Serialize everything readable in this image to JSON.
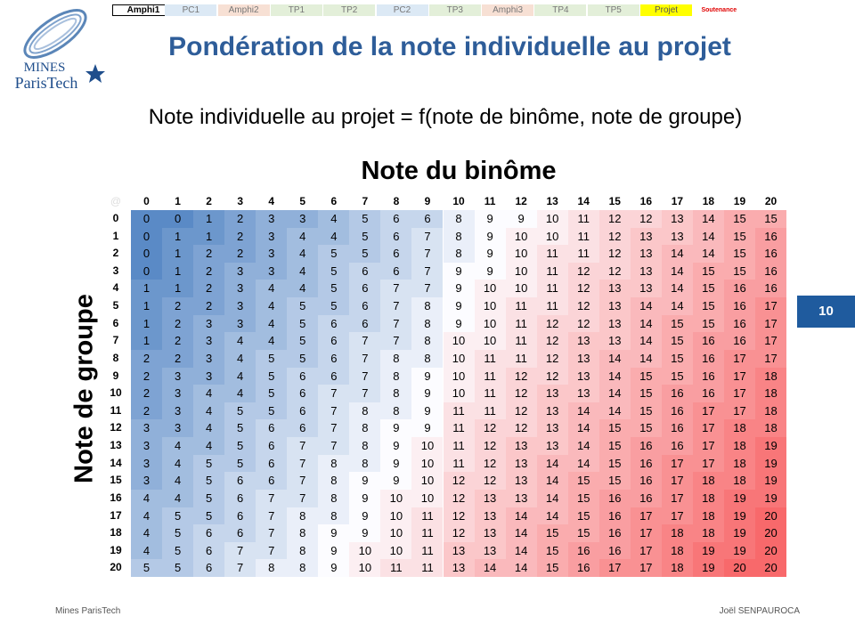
{
  "nav": [
    "Amphi1",
    "PC1",
    "Amphi2",
    "TP1",
    "TP2",
    "PC2",
    "TP3",
    "Amphi3",
    "TP4",
    "TP5",
    "Projet",
    "Soutenance"
  ],
  "logo": {
    "line1": "MINES",
    "line2": "ParisTech"
  },
  "header": {
    "title": "Pondération de la note individuelle au projet"
  },
  "formula": "Note individuelle au projet = f(note de binôme, note de groupe)",
  "table": {
    "title": "Note du binôme",
    "row_axis_label": "Note de groupe",
    "corner": "@",
    "columns": [
      0,
      1,
      2,
      3,
      4,
      5,
      6,
      7,
      8,
      9,
      10,
      11,
      12,
      13,
      14,
      15,
      16,
      17,
      18,
      19,
      20
    ],
    "row_headers": [
      0,
      1,
      2,
      3,
      4,
      5,
      6,
      7,
      8,
      9,
      10,
      11,
      12,
      13,
      14,
      15,
      16,
      17,
      18,
      19,
      20
    ],
    "rows": [
      [
        0,
        0,
        1,
        2,
        3,
        3,
        4,
        5,
        6,
        6,
        8,
        9,
        9,
        10,
        11,
        12,
        12,
        13,
        14,
        15,
        15
      ],
      [
        0,
        1,
        1,
        2,
        3,
        4,
        4,
        5,
        6,
        7,
        8,
        9,
        10,
        10,
        11,
        12,
        13,
        13,
        14,
        15,
        16
      ],
      [
        0,
        1,
        2,
        2,
        3,
        4,
        5,
        5,
        6,
        7,
        8,
        9,
        10,
        11,
        11,
        12,
        13,
        14,
        14,
        15,
        16
      ],
      [
        0,
        1,
        2,
        3,
        3,
        4,
        5,
        6,
        6,
        7,
        9,
        9,
        10,
        11,
        12,
        12,
        13,
        14,
        15,
        15,
        16
      ],
      [
        1,
        1,
        2,
        3,
        4,
        4,
        5,
        6,
        7,
        7,
        9,
        10,
        10,
        11,
        12,
        13,
        13,
        14,
        15,
        16,
        16
      ],
      [
        1,
        2,
        2,
        3,
        4,
        5,
        5,
        6,
        7,
        8,
        9,
        10,
        11,
        11,
        12,
        13,
        14,
        14,
        15,
        16,
        17
      ],
      [
        1,
        2,
        3,
        3,
        4,
        5,
        6,
        6,
        7,
        8,
        9,
        10,
        11,
        12,
        12,
        13,
        14,
        15,
        15,
        16,
        17
      ],
      [
        1,
        2,
        3,
        4,
        4,
        5,
        6,
        7,
        7,
        8,
        10,
        10,
        11,
        12,
        13,
        13,
        14,
        15,
        16,
        16,
        17
      ],
      [
        2,
        2,
        3,
        4,
        5,
        5,
        6,
        7,
        8,
        8,
        10,
        11,
        11,
        12,
        13,
        14,
        14,
        15,
        16,
        17,
        17
      ],
      [
        2,
        3,
        3,
        4,
        5,
        6,
        6,
        7,
        8,
        9,
        10,
        11,
        12,
        12,
        13,
        14,
        15,
        15,
        16,
        17,
        18
      ],
      [
        2,
        3,
        4,
        4,
        5,
        6,
        7,
        7,
        8,
        9,
        10,
        11,
        12,
        13,
        13,
        14,
        15,
        16,
        16,
        17,
        18
      ],
      [
        2,
        3,
        4,
        5,
        5,
        6,
        7,
        8,
        8,
        9,
        11,
        11,
        12,
        13,
        14,
        14,
        15,
        16,
        17,
        17,
        18
      ],
      [
        3,
        3,
        4,
        5,
        6,
        6,
        7,
        8,
        9,
        9,
        11,
        12,
        12,
        13,
        14,
        15,
        15,
        16,
        17,
        18,
        18
      ],
      [
        3,
        4,
        4,
        5,
        6,
        7,
        7,
        8,
        9,
        10,
        11,
        12,
        13,
        13,
        14,
        15,
        16,
        16,
        17,
        18,
        19
      ],
      [
        3,
        4,
        5,
        5,
        6,
        7,
        8,
        8,
        9,
        10,
        11,
        12,
        13,
        14,
        14,
        15,
        16,
        17,
        17,
        18,
        19
      ],
      [
        3,
        4,
        5,
        6,
        6,
        7,
        8,
        9,
        9,
        10,
        12,
        12,
        13,
        14,
        15,
        15,
        16,
        17,
        18,
        18,
        19
      ],
      [
        4,
        4,
        5,
        6,
        7,
        7,
        8,
        9,
        10,
        10,
        12,
        13,
        13,
        14,
        15,
        16,
        16,
        17,
        18,
        19,
        19
      ],
      [
        4,
        5,
        5,
        6,
        7,
        8,
        8,
        9,
        10,
        11,
        12,
        13,
        14,
        14,
        15,
        16,
        17,
        17,
        18,
        19,
        20
      ],
      [
        4,
        5,
        6,
        6,
        7,
        8,
        9,
        9,
        10,
        11,
        12,
        13,
        14,
        15,
        15,
        16,
        17,
        18,
        18,
        19,
        20
      ],
      [
        4,
        5,
        6,
        7,
        7,
        8,
        9,
        10,
        10,
        11,
        13,
        13,
        14,
        15,
        16,
        16,
        17,
        18,
        19,
        19,
        20
      ],
      [
        5,
        5,
        6,
        7,
        8,
        8,
        9,
        10,
        11,
        11,
        13,
        14,
        14,
        15,
        16,
        17,
        17,
        18,
        19,
        20,
        20
      ]
    ]
  },
  "page_number": "10",
  "footer": {
    "left": "Mines ParisTech",
    "right": "Joël SENPAUROCA"
  }
}
